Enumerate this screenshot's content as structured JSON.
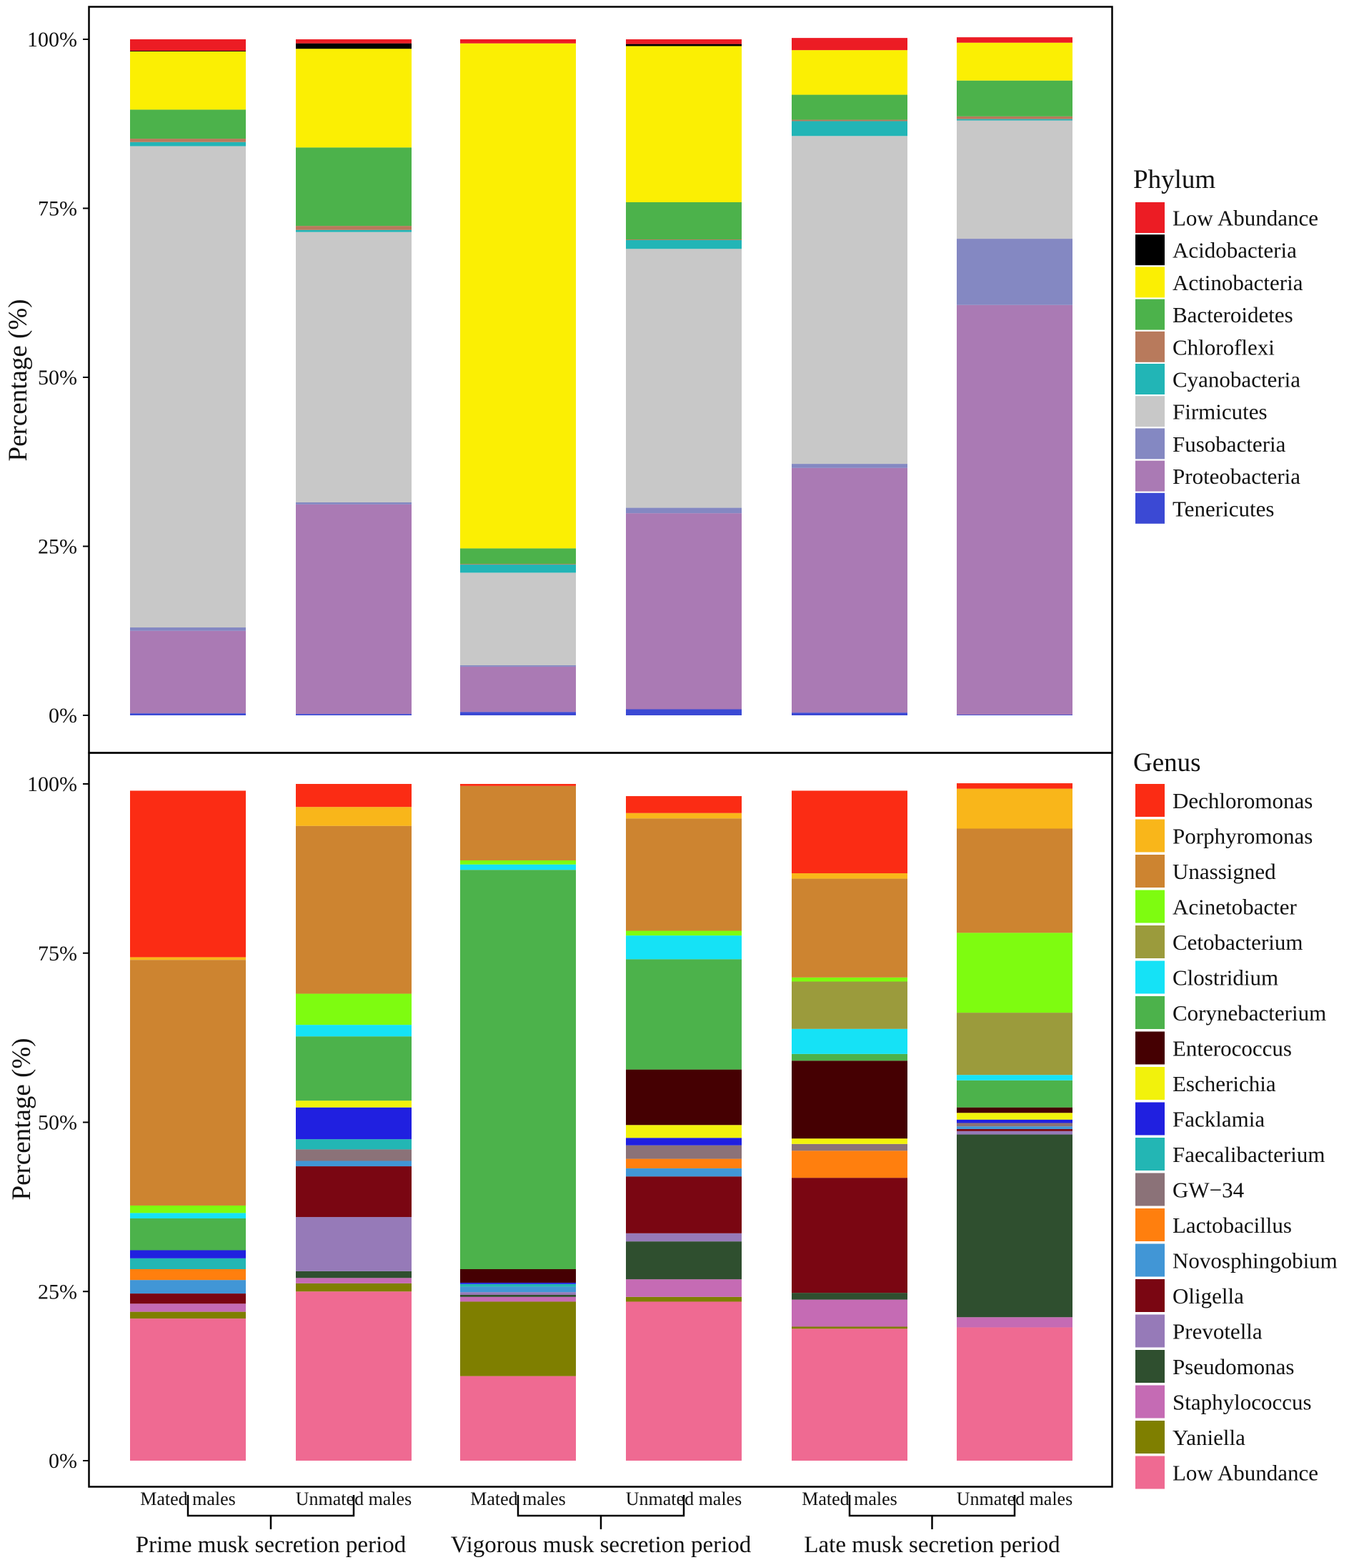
{
  "chart_data": [
    {
      "type": "bar",
      "subtype": "stacked-100-percent",
      "panel": "top",
      "legend_title": "Phylum",
      "ylabel": "Percentage (%)",
      "ylim": [
        0,
        100
      ],
      "yticks": [
        "0%",
        "25%",
        "50%",
        "75%",
        "100%"
      ],
      "categories": [
        "Mated males",
        "Unmated males",
        "Mated males",
        "Unmated males",
        "Mated males",
        "Unmated males"
      ],
      "series": [
        {
          "name": "Tenericutes",
          "color": "#3b49d4",
          "values": [
            0.3,
            0.2,
            0.5,
            0.9,
            0.4,
            0.1
          ]
        },
        {
          "name": "Proteobacteria",
          "color": "#aa7ab4",
          "values": [
            12.2,
            31.0,
            6.7,
            29.0,
            36.2,
            60.6
          ]
        },
        {
          "name": "Fusobacteria",
          "color": "#8488c2",
          "values": [
            0.5,
            0.3,
            0.2,
            0.8,
            0.6,
            9.8
          ]
        },
        {
          "name": "Firmicutes",
          "color": "#c8c8c8",
          "values": [
            71.2,
            40.0,
            13.7,
            38.3,
            48.5,
            17.5
          ]
        },
        {
          "name": "Cyanobacteria",
          "color": "#22b5b6",
          "values": [
            0.6,
            0.3,
            1.2,
            1.3,
            2.2,
            0.2
          ]
        },
        {
          "name": "Chloroflexi",
          "color": "#b87a5c",
          "values": [
            0.5,
            0.6,
            0.1,
            0.1,
            0.2,
            0.4
          ]
        },
        {
          "name": "Bacteroidetes",
          "color": "#4cb24b",
          "values": [
            4.3,
            11.6,
            2.3,
            5.5,
            3.7,
            5.3
          ]
        },
        {
          "name": "Actinobacteria",
          "color": "#fbef03",
          "values": [
            8.6,
            14.6,
            74.7,
            23.1,
            6.6,
            5.6
          ]
        },
        {
          "name": "Acidobacteria",
          "color": "#000000",
          "values": [
            0.1,
            0.8,
            0.0,
            0.3,
            0.0,
            0.0
          ]
        },
        {
          "name": "Low Abundance",
          "color": "#ec1c24",
          "values": [
            1.7,
            0.6,
            0.6,
            0.7,
            1.8,
            0.8
          ]
        }
      ]
    },
    {
      "type": "bar",
      "subtype": "stacked-100-percent",
      "panel": "bottom",
      "legend_title": "Genus",
      "ylabel": "Percentage (%)",
      "ylim": [
        0,
        100
      ],
      "yticks": [
        "0%",
        "25%",
        "50%",
        "75%",
        "100%"
      ],
      "categories": [
        "Mated males",
        "Unmated males",
        "Mated males",
        "Unmated males",
        "Mated males",
        "Unmated males"
      ],
      "groups": [
        {
          "label": "Prime musk secretion period",
          "members": [
            0,
            1
          ]
        },
        {
          "label": "Vigorous musk secretion period",
          "members": [
            2,
            3
          ]
        },
        {
          "label": "Late musk secretion period",
          "members": [
            4,
            5
          ]
        }
      ],
      "series": [
        {
          "name": "Low Abundance",
          "color": "#ef6a92",
          "values": [
            21.0,
            25.0,
            12.5,
            23.5,
            19.5,
            19.7
          ]
        },
        {
          "name": "Yaniella",
          "color": "#7f7f00",
          "values": [
            1.0,
            1.2,
            11.0,
            0.7,
            0.3,
            0.0
          ]
        },
        {
          "name": "Staphylococcus",
          "color": "#c56bb4",
          "values": [
            1.2,
            0.8,
            0.7,
            2.6,
            4.0,
            1.5
          ]
        },
        {
          "name": "Pseudomonas",
          "color": "#2f4f2f",
          "values": [
            0.0,
            1.0,
            0.3,
            5.6,
            1.0,
            27.0
          ]
        },
        {
          "name": "Prevotella",
          "color": "#967ab8",
          "values": [
            0.0,
            8.0,
            0.4,
            1.2,
            0.0,
            0.5
          ]
        },
        {
          "name": "Oligella",
          "color": "#7a0612",
          "values": [
            1.5,
            7.5,
            0.0,
            8.4,
            17.0,
            0.3
          ]
        },
        {
          "name": "Novosphingobium",
          "color": "#4196d6",
          "values": [
            2.0,
            0.8,
            0.8,
            1.2,
            0.0,
            0.4
          ]
        },
        {
          "name": "Lactobacillus",
          "color": "#ff7f0e",
          "values": [
            1.6,
            0.0,
            0.0,
            1.4,
            4.0,
            0.0
          ]
        },
        {
          "name": "GW−34",
          "color": "#8b7278",
          "values": [
            0.0,
            1.7,
            0.0,
            2.0,
            1.0,
            0.5
          ]
        },
        {
          "name": "Faecalibacterium",
          "color": "#23b6b4",
          "values": [
            1.6,
            1.5,
            0.4,
            0.0,
            0.0,
            0.0
          ]
        },
        {
          "name": "Facklamia",
          "color": "#2020e0",
          "values": [
            1.2,
            4.7,
            0.2,
            1.1,
            0.0,
            0.5
          ]
        },
        {
          "name": "Escherichia",
          "color": "#f2f20c",
          "values": [
            0.0,
            1.0,
            0.0,
            1.9,
            0.8,
            1.0
          ]
        },
        {
          "name": "Enterococcus",
          "color": "#450002",
          "values": [
            0.0,
            0.0,
            2.0,
            8.2,
            11.5,
            0.8
          ]
        },
        {
          "name": "Corynebacterium",
          "color": "#4cb24b",
          "values": [
            4.7,
            9.5,
            59.0,
            16.3,
            1.0,
            4.0
          ]
        },
        {
          "name": "Clostridium",
          "color": "#15e2f6",
          "values": [
            0.8,
            1.7,
            0.8,
            3.5,
            3.7,
            0.8
          ]
        },
        {
          "name": "Cetobacterium",
          "color": "#9b9b3c",
          "values": [
            0.0,
            0.0,
            0.0,
            0.0,
            7.0,
            9.2
          ]
        },
        {
          "name": "Acinetobacter",
          "color": "#7efc10",
          "values": [
            1.1,
            4.6,
            0.6,
            0.7,
            0.6,
            11.8
          ]
        },
        {
          "name": "Unassigned",
          "color": "#cd8430",
          "values": [
            36.3,
            24.8,
            11.0,
            16.6,
            14.6,
            15.4
          ]
        },
        {
          "name": "Porphyromonas",
          "color": "#f9b61a",
          "values": [
            0.4,
            2.8,
            0.0,
            0.8,
            0.8,
            5.9
          ]
        },
        {
          "name": "Dechloromonas",
          "color": "#fb2c14",
          "values": [
            24.6,
            3.4,
            0.3,
            2.5,
            12.2,
            0.8
          ]
        }
      ]
    }
  ]
}
